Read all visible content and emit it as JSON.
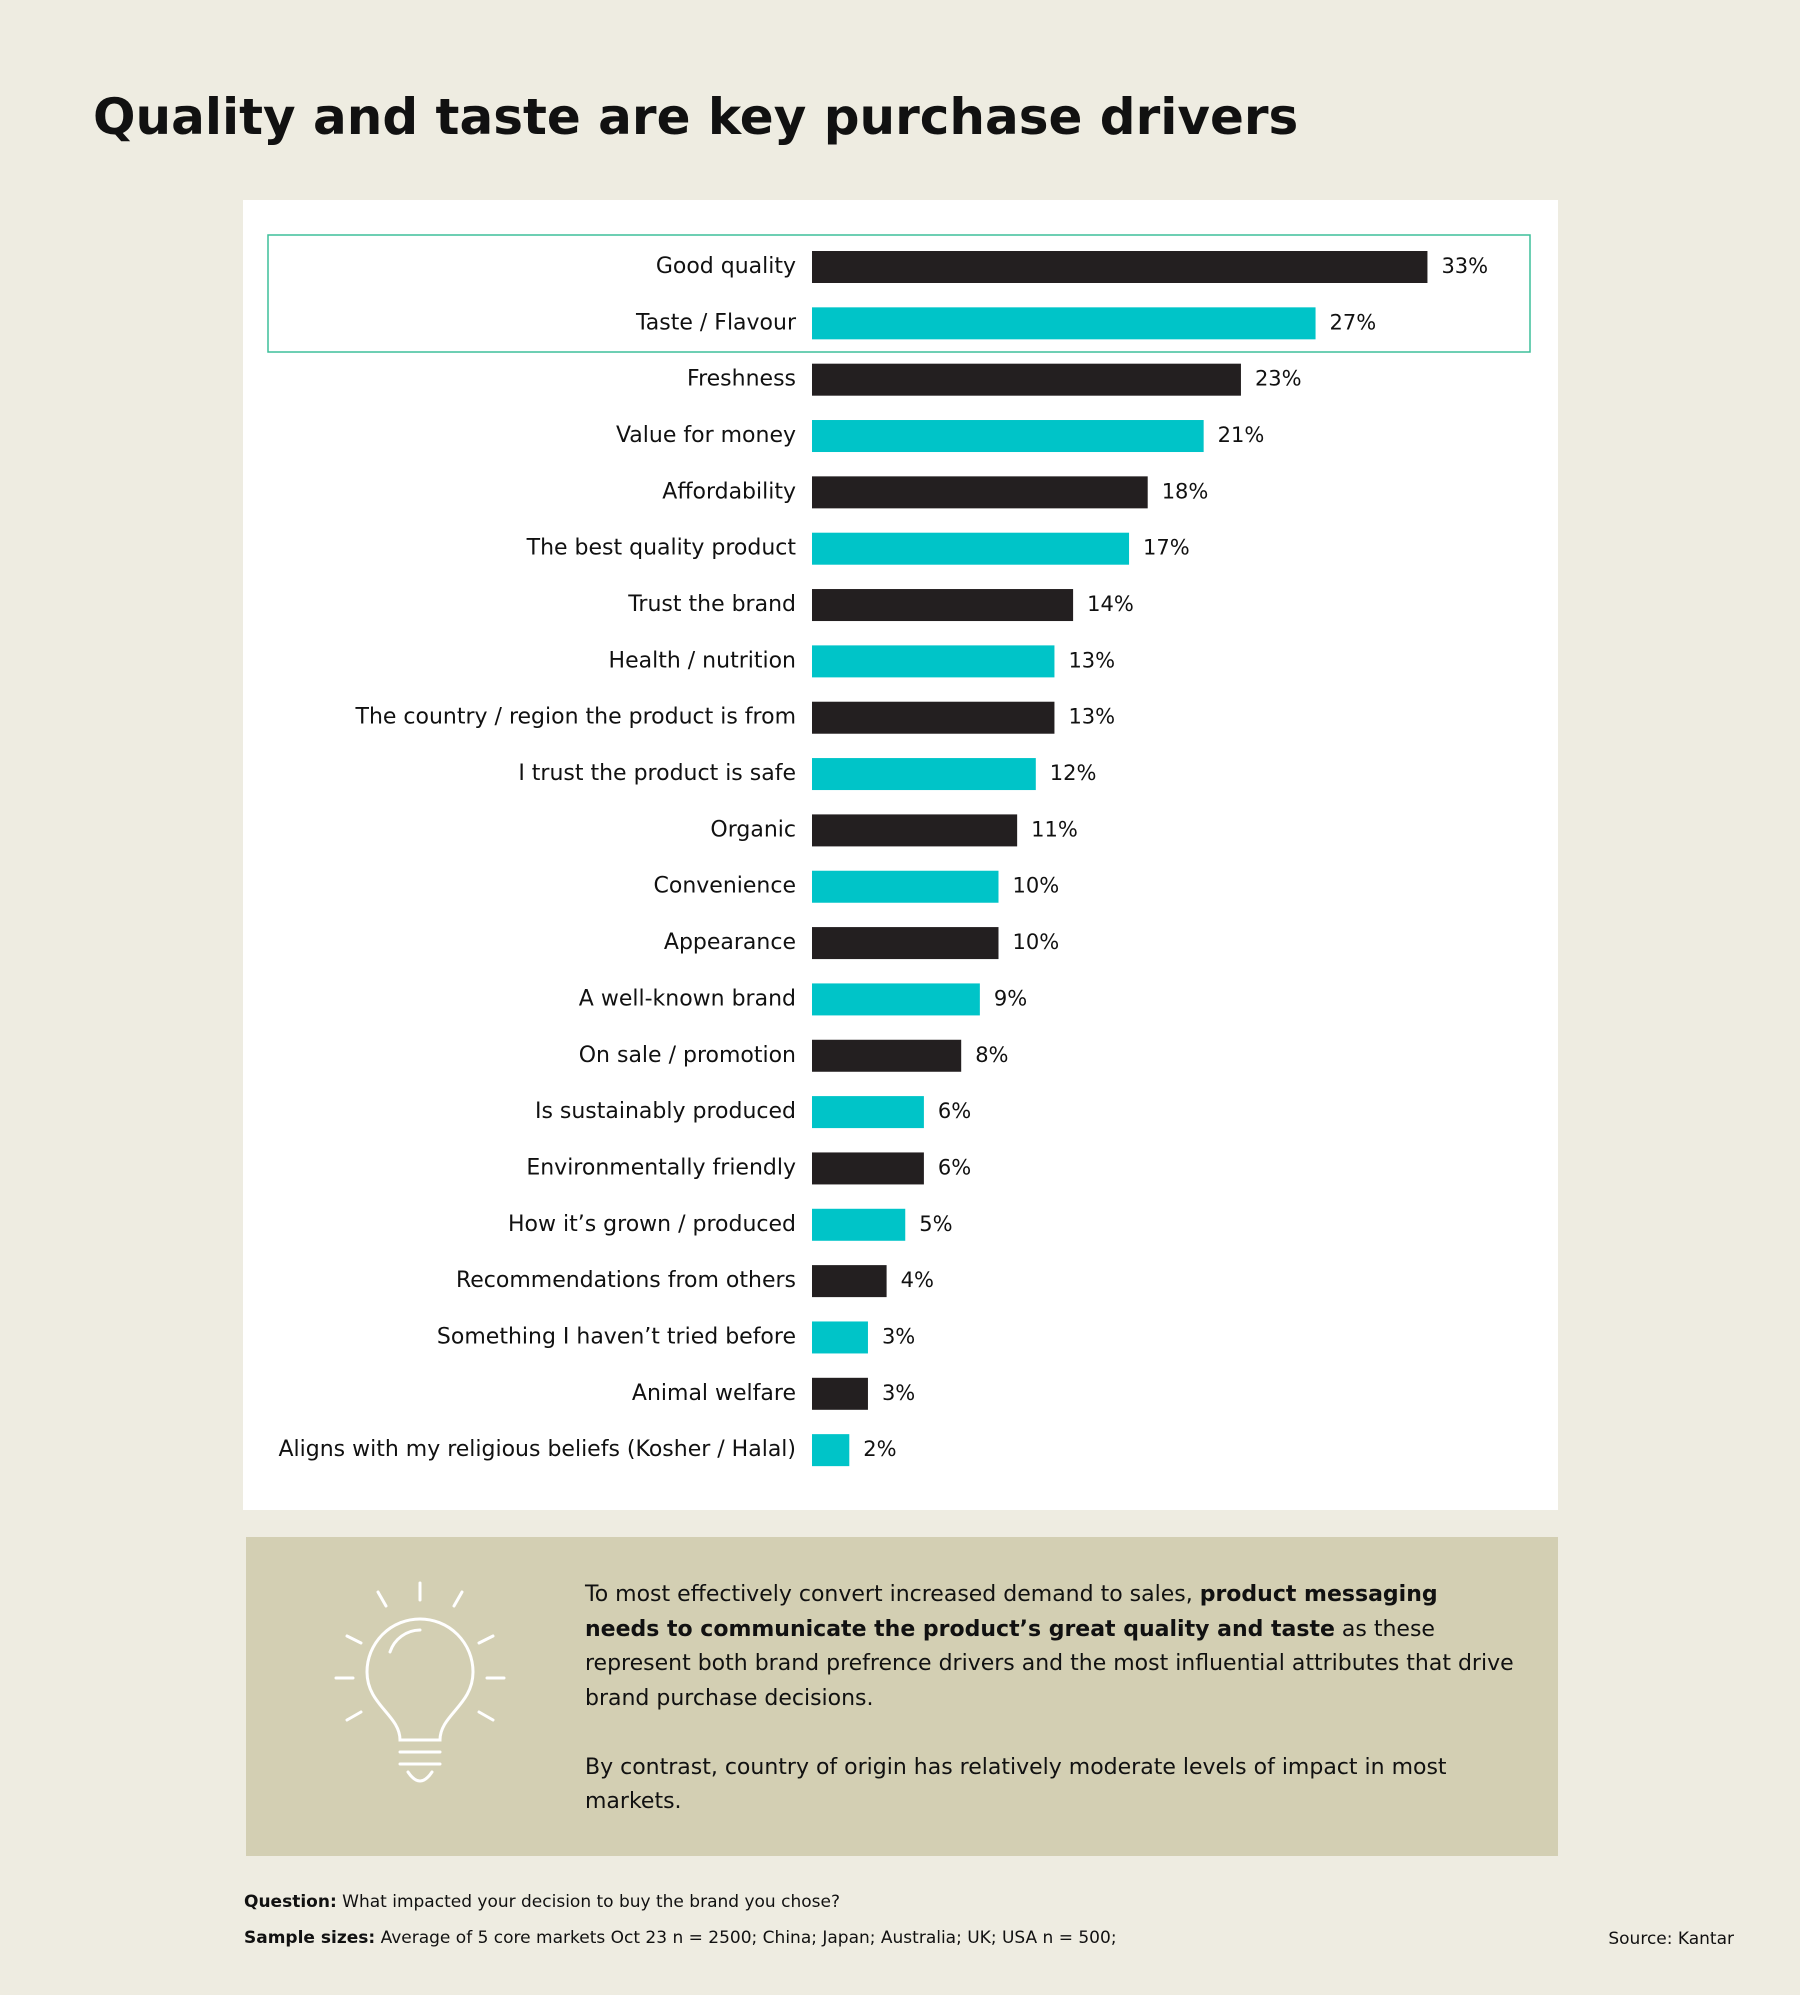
{
  "title": "Quality and taste are key purchase drivers",
  "chart_data": {
    "type": "bar",
    "orientation": "horizontal",
    "categories": [
      "Good quality",
      "Taste / Flavour",
      "Freshness",
      "Value for money",
      "Affordability",
      "The best quality product",
      "Trust the brand",
      "Health / nutrition",
      "The country / region the product is from",
      "I trust the product is safe",
      "Organic",
      "Convenience",
      "Appearance",
      "A well-known brand",
      "On sale / promotion",
      "Is sustainably produced",
      "Environmentally friendly",
      "How it’s grown / produced",
      "Recommendations from others",
      "Something I haven’t tried before",
      "Animal welfare",
      "Aligns with my religious beliefs (Kosher / Halal)"
    ],
    "values": [
      33,
      27,
      23,
      21,
      18,
      17,
      14,
      13,
      13,
      12,
      11,
      10,
      10,
      9,
      8,
      6,
      6,
      5,
      4,
      3,
      3,
      2
    ],
    "value_labels": [
      "33%",
      "27%",
      "23%",
      "21%",
      "18%",
      "17%",
      "14%",
      "13%",
      "13%",
      "12%",
      "11%",
      "10%",
      "10%",
      "9%",
      "8%",
      "6%",
      "6%",
      "5%",
      "4%",
      "3%",
      "3%",
      "2%"
    ],
    "colors": [
      "#231f20",
      "#00c4c8",
      "#231f20",
      "#00c4c8",
      "#231f20",
      "#00c4c8",
      "#231f20",
      "#00c4c8",
      "#231f20",
      "#00c4c8",
      "#231f20",
      "#00c4c8",
      "#231f20",
      "#00c4c8",
      "#231f20",
      "#00c4c8",
      "#231f20",
      "#00c4c8",
      "#231f20",
      "#00c4c8",
      "#231f20",
      "#00c4c8"
    ],
    "xlim": [
      0,
      40
    ]
  },
  "note": {
    "p1": [
      "To most effectively convert increased demand to sales, ",
      "product messaging needs to communicate the product’s great quality and taste",
      " as these represent both brand prefrence drivers and the most influential attributes that drive brand purchase decisions."
    ],
    "p2": "By contrast, country of origin has relatively moderate levels of impact in most markets."
  },
  "footer": {
    "question_label": "Question:",
    "question": "What impacted your decision to buy the brand you chose?",
    "sample_label": "Sample sizes:",
    "sample": "Average of 5 core markets Oct 23 n = 2500; China; Japan; Australia; UK; USA n = 500;",
    "source": "Source: Kantar"
  }
}
